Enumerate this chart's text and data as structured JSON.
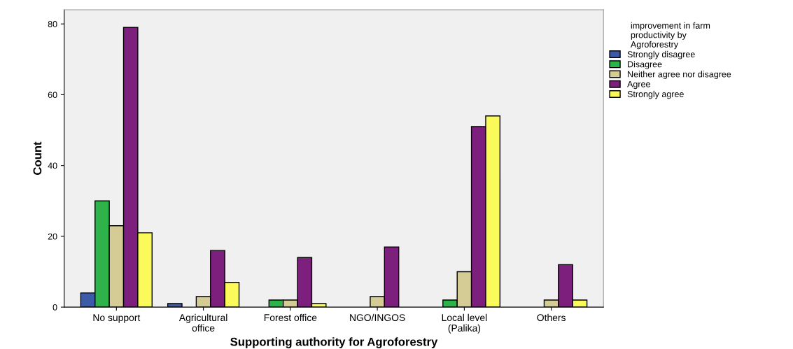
{
  "chart_data": {
    "type": "bar",
    "xlabel": "Supporting authority for Agroforestry",
    "ylabel": "Count",
    "categories": [
      "No support",
      "Agricultural\noffice",
      "Forest office",
      "NGO/INGOS",
      "Local level\n(Palika)",
      "Others"
    ],
    "legend_title": "improvement in farm\nproductivity by\nAgroforestry",
    "series": [
      {
        "name": "Strongly disagree",
        "color": "#3c5aa8",
        "values": [
          4,
          1,
          null,
          null,
          null,
          null
        ]
      },
      {
        "name": "Disagree",
        "color": "#2db34a",
        "values": [
          30,
          null,
          2,
          null,
          2,
          null
        ]
      },
      {
        "name": "Neither agree nor disagree",
        "color": "#d4cc94",
        "values": [
          23,
          3,
          2,
          3,
          10,
          2
        ]
      },
      {
        "name": "Agree",
        "color": "#7d1f7d",
        "values": [
          79,
          16,
          14,
          17,
          51,
          12
        ]
      },
      {
        "name": "Strongly agree",
        "color": "#fafa5a",
        "values": [
          21,
          7,
          1,
          null,
          54,
          2
        ]
      }
    ],
    "ylim": [
      0,
      84
    ],
    "yticks": [
      0,
      20,
      40,
      60,
      80
    ],
    "grid": false,
    "legend": "top right"
  }
}
